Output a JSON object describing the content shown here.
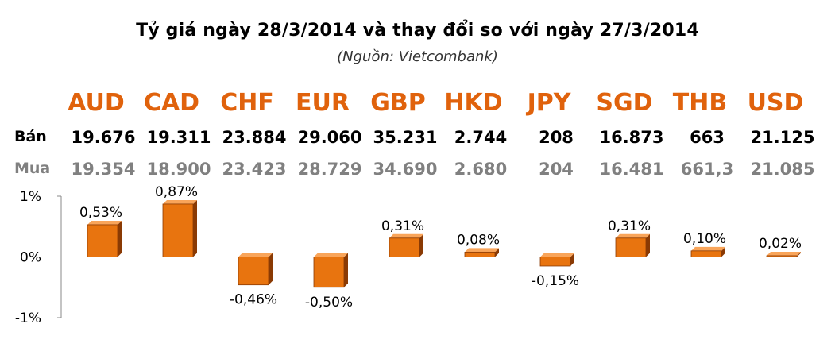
{
  "header": {
    "title": "Tỷ giá ngày 28/3/2014 và thay đổi so với ngày 27/3/2014",
    "subtitle": "(Nguồn: Vietcombank)"
  },
  "rows": {
    "sell_label": "Bán",
    "buy_label": "Mua"
  },
  "currencies": [
    {
      "code": "AUD",
      "sell": "19.676",
      "buy": "19.354"
    },
    {
      "code": "CAD",
      "sell": "19.311",
      "buy": "18.900"
    },
    {
      "code": "CHF",
      "sell": "23.884",
      "buy": "23.423"
    },
    {
      "code": "EUR",
      "sell": "29.060",
      "buy": "28.729"
    },
    {
      "code": "GBP",
      "sell": "35.231",
      "buy": "34.690"
    },
    {
      "code": "HKD",
      "sell": "2.744",
      "buy": "2.680"
    },
    {
      "code": "JPY",
      "sell": "208",
      "buy": "204"
    },
    {
      "code": "SGD",
      "sell": "16.873",
      "buy": "16.481"
    },
    {
      "code": "THB",
      "sell": "663",
      "buy": "661,3"
    },
    {
      "code": "USD",
      "sell": "21.125",
      "buy": "21.085"
    }
  ],
  "colors": {
    "bar_front": "#e8740f",
    "bar_light": "#f9a55a",
    "bar_dark": "#8a3a04",
    "currency_text": "#e0620c",
    "buy_text": "#808080"
  },
  "chart_data": {
    "type": "bar",
    "categories": [
      "AUD",
      "CAD",
      "CHF",
      "EUR",
      "GBP",
      "HKD",
      "JPY",
      "SGD",
      "THB",
      "USD"
    ],
    "values": [
      0.53,
      0.87,
      -0.46,
      -0.5,
      0.31,
      0.08,
      -0.15,
      0.31,
      0.1,
      0.02
    ],
    "data_labels": [
      "0,53%",
      "0,87%",
      "-0,46%",
      "-0,50%",
      "0,31%",
      "0,08%",
      "-0,15%",
      "0,31%",
      "0,10%",
      "0,02%"
    ],
    "yticks": [
      "1%",
      "0%",
      "-1%"
    ],
    "ylim": [
      -1,
      1
    ],
    "grid": false
  }
}
